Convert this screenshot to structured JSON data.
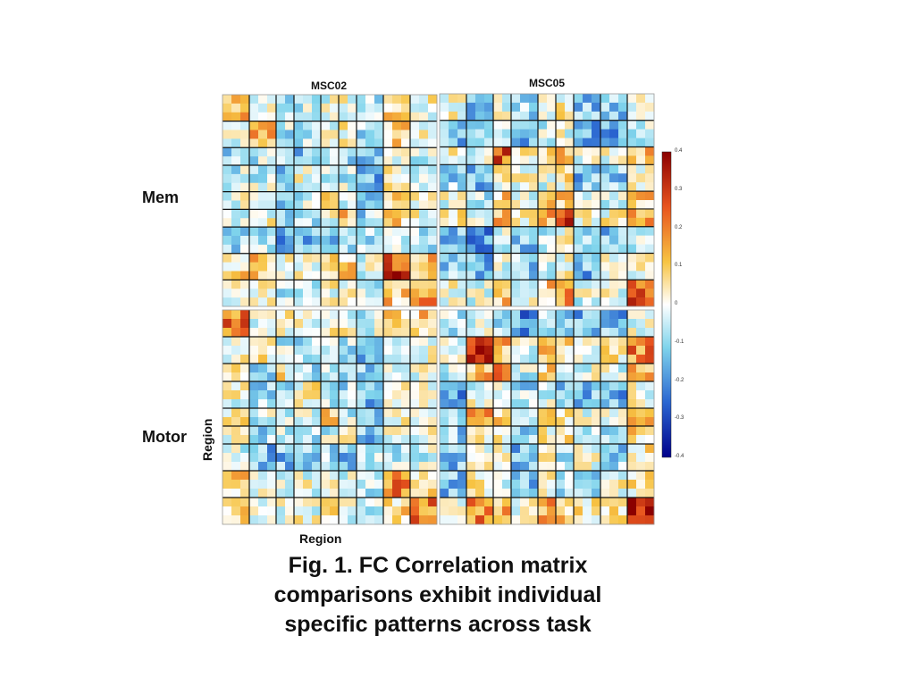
{
  "chart_data": {
    "type": "heatmap",
    "column_titles": [
      "MSC02",
      "MSC05"
    ],
    "row_labels": [
      "Mem",
      "Motor"
    ],
    "xlabel": "Region",
    "ylabel": "Region",
    "colorbar": {
      "range": [
        -0.4,
        0.4
      ],
      "ticks": [
        "0.4",
        "0.3",
        "0.2",
        "0.1",
        "0",
        "-0.1",
        "-0.2",
        "-0.3",
        "-0.4"
      ],
      "colors": [
        "#8b0000",
        "#e8541e",
        "#f7c443",
        "#ffffff",
        "#7fd4ec",
        "#2a66d1",
        "#00008b"
      ]
    },
    "panels": [
      {
        "subject": "MSC02",
        "task": "Mem"
      },
      {
        "subject": "MSC05",
        "task": "Mem"
      },
      {
        "subject": "MSC02",
        "task": "Motor"
      },
      {
        "subject": "MSC05",
        "task": "Motor"
      }
    ]
  },
  "caption": {
    "line1": "Fig. 1. FC Correlation matrix",
    "line2": "comparisons exhibit individual",
    "line3": "specific patterns across task"
  }
}
